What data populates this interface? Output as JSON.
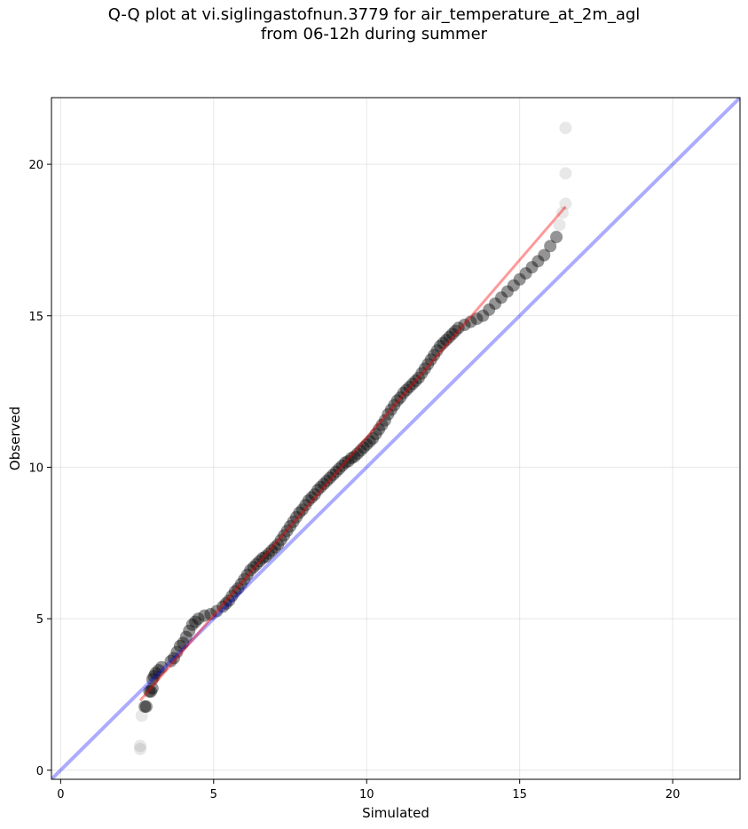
{
  "chart_data": {
    "type": "scatter",
    "title_lines": [
      "Q-Q plot at vi.siglingastofnun.3779 for air_temperature_at_2m_agl",
      "from 06-12h during summer"
    ],
    "xlabel": "Simulated",
    "ylabel": "Observed",
    "xlim": [
      -0.3,
      22.2
    ],
    "ylim": [
      -0.3,
      22.2
    ],
    "xticks": [
      0,
      5,
      10,
      15,
      20
    ],
    "yticks": [
      0,
      5,
      10,
      15,
      20
    ],
    "grid": true,
    "reference_line": {
      "kind": "identity",
      "color": "#0000ff",
      "opacity": 0.33
    },
    "fit_line": {
      "x": [
        2.6,
        16.5
      ],
      "y": [
        2.3,
        18.6
      ],
      "color": "#ff0000",
      "opacity": 0.4
    },
    "point_color": "#000000",
    "points": [
      [
        2.6,
        0.7
      ],
      [
        2.6,
        0.8
      ],
      [
        2.65,
        1.8
      ],
      [
        2.75,
        2.1
      ],
      [
        2.8,
        2.1
      ],
      [
        2.9,
        2.6
      ],
      [
        2.95,
        2.6
      ],
      [
        3.0,
        2.7
      ],
      [
        3.0,
        3.0
      ],
      [
        3.05,
        3.1
      ],
      [
        3.1,
        3.2
      ],
      [
        3.2,
        3.3
      ],
      [
        3.3,
        3.4
      ],
      [
        3.6,
        3.6
      ],
      [
        3.7,
        3.7
      ],
      [
        3.8,
        3.9
      ],
      [
        3.9,
        4.1
      ],
      [
        4.0,
        4.2
      ],
      [
        4.1,
        4.4
      ],
      [
        4.2,
        4.6
      ],
      [
        4.3,
        4.8
      ],
      [
        4.4,
        4.9
      ],
      [
        4.5,
        5.0
      ],
      [
        4.7,
        5.1
      ],
      [
        4.9,
        5.15
      ],
      [
        5.1,
        5.25
      ],
      [
        5.3,
        5.4
      ],
      [
        5.4,
        5.5
      ],
      [
        5.5,
        5.6
      ],
      [
        5.6,
        5.75
      ],
      [
        5.7,
        5.9
      ],
      [
        5.8,
        6.0
      ],
      [
        5.9,
        6.15
      ],
      [
        6.0,
        6.3
      ],
      [
        6.1,
        6.45
      ],
      [
        6.2,
        6.6
      ],
      [
        6.3,
        6.7
      ],
      [
        6.4,
        6.8
      ],
      [
        6.5,
        6.9
      ],
      [
        6.6,
        7.0
      ],
      [
        6.7,
        7.05
      ],
      [
        6.8,
        7.15
      ],
      [
        6.9,
        7.25
      ],
      [
        7.0,
        7.35
      ],
      [
        7.1,
        7.45
      ],
      [
        7.2,
        7.6
      ],
      [
        7.3,
        7.75
      ],
      [
        7.4,
        7.9
      ],
      [
        7.5,
        8.05
      ],
      [
        7.6,
        8.2
      ],
      [
        7.7,
        8.35
      ],
      [
        7.8,
        8.5
      ],
      [
        7.9,
        8.6
      ],
      [
        8.0,
        8.75
      ],
      [
        8.1,
        8.9
      ],
      [
        8.2,
        9.0
      ],
      [
        8.3,
        9.1
      ],
      [
        8.4,
        9.25
      ],
      [
        8.5,
        9.35
      ],
      [
        8.6,
        9.45
      ],
      [
        8.7,
        9.55
      ],
      [
        8.8,
        9.65
      ],
      [
        8.9,
        9.75
      ],
      [
        9.0,
        9.85
      ],
      [
        9.1,
        9.95
      ],
      [
        9.2,
        10.05
      ],
      [
        9.3,
        10.15
      ],
      [
        9.4,
        10.2
      ],
      [
        9.5,
        10.3
      ],
      [
        9.6,
        10.35
      ],
      [
        9.7,
        10.45
      ],
      [
        9.8,
        10.55
      ],
      [
        9.9,
        10.65
      ],
      [
        10.0,
        10.75
      ],
      [
        10.1,
        10.85
      ],
      [
        10.2,
        10.95
      ],
      [
        10.3,
        11.1
      ],
      [
        10.4,
        11.25
      ],
      [
        10.5,
        11.4
      ],
      [
        10.6,
        11.55
      ],
      [
        10.7,
        11.75
      ],
      [
        10.8,
        11.9
      ],
      [
        10.9,
        12.05
      ],
      [
        11.0,
        12.2
      ],
      [
        11.1,
        12.3
      ],
      [
        11.2,
        12.45
      ],
      [
        11.3,
        12.55
      ],
      [
        11.4,
        12.65
      ],
      [
        11.5,
        12.75
      ],
      [
        11.6,
        12.85
      ],
      [
        11.7,
        12.95
      ],
      [
        11.8,
        13.1
      ],
      [
        11.9,
        13.25
      ],
      [
        12.0,
        13.4
      ],
      [
        12.1,
        13.55
      ],
      [
        12.2,
        13.7
      ],
      [
        12.3,
        13.85
      ],
      [
        12.4,
        14.0
      ],
      [
        12.5,
        14.1
      ],
      [
        12.6,
        14.2
      ],
      [
        12.7,
        14.3
      ],
      [
        12.8,
        14.4
      ],
      [
        12.9,
        14.5
      ],
      [
        13.0,
        14.6
      ],
      [
        13.2,
        14.7
      ],
      [
        13.4,
        14.8
      ],
      [
        13.6,
        14.9
      ],
      [
        13.8,
        15.0
      ],
      [
        14.0,
        15.2
      ],
      [
        14.2,
        15.4
      ],
      [
        14.4,
        15.6
      ],
      [
        14.6,
        15.8
      ],
      [
        14.8,
        16.0
      ],
      [
        15.0,
        16.2
      ],
      [
        15.2,
        16.4
      ],
      [
        15.4,
        16.6
      ],
      [
        15.6,
        16.8
      ],
      [
        15.8,
        17.0
      ],
      [
        16.0,
        17.3
      ],
      [
        16.2,
        17.6
      ],
      [
        16.3,
        18.0
      ],
      [
        16.4,
        18.4
      ],
      [
        16.5,
        18.7
      ],
      [
        16.5,
        19.7
      ],
      [
        16.5,
        21.2
      ]
    ]
  }
}
